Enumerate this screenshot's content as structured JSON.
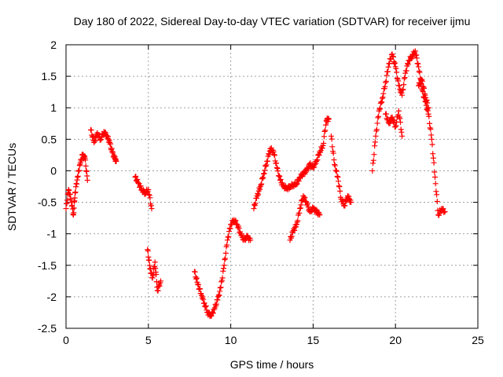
{
  "chart_data": {
    "type": "scatter",
    "title": "Day 180 of 2022, Sidereal Day-to-day VTEC variation (SDTVAR) for receiver ijmu",
    "xlabel": "GPS time / hours",
    "ylabel": "SDTVAR / TECUs",
    "xlim": [
      0,
      25
    ],
    "ylim": [
      -2.5,
      2
    ],
    "xticks": [
      0,
      5,
      10,
      15,
      20,
      25
    ],
    "yticks": [
      -2.5,
      -2,
      -1.5,
      -1,
      -0.5,
      0,
      0.5,
      1,
      1.5,
      2
    ],
    "xtick_labels": [
      "0",
      "5",
      "10",
      "15",
      "20",
      "25"
    ],
    "ytick_labels": [
      "-2.5",
      "-2",
      "-1.5",
      "-1",
      "-0.5",
      "0",
      "0.5",
      "1",
      "1.5",
      "2"
    ],
    "grid": true,
    "marker": "+",
    "color": "#ff0000",
    "series": [
      {
        "name": "SDTVAR",
        "segments": [
          {
            "x": [
              0.0,
              0.15,
              0.3,
              0.45,
              0.55,
              0.7,
              0.85,
              1.0,
              1.15,
              1.3
            ],
            "y": [
              -0.6,
              -0.3,
              -0.45,
              -0.7,
              -0.35,
              -0.1,
              0.1,
              0.25,
              0.2,
              -0.15
            ]
          },
          {
            "x": [
              1.5,
              1.7,
              1.9,
              2.1,
              2.3,
              2.5,
              2.65,
              2.8,
              2.95,
              3.05
            ],
            "y": [
              0.65,
              0.45,
              0.6,
              0.5,
              0.62,
              0.55,
              0.45,
              0.3,
              0.2,
              0.15
            ]
          },
          {
            "x": [
              4.2,
              4.4,
              4.6,
              4.8,
              5.0,
              5.2
            ],
            "y": [
              -0.1,
              -0.2,
              -0.3,
              -0.35,
              -0.3,
              -0.6
            ]
          },
          {
            "x": [
              4.95,
              5.1,
              5.25,
              5.4,
              5.55,
              5.75
            ],
            "y": [
              -1.25,
              -1.55,
              -1.7,
              -1.45,
              -1.9,
              -1.75
            ]
          },
          {
            "x": [
              7.8,
              8.0,
              8.2,
              8.4,
              8.6,
              8.8,
              9.0,
              9.2,
              9.4,
              9.6,
              9.8,
              10.0,
              10.2,
              10.4,
              10.6,
              10.8,
              11.0,
              11.2
            ],
            "y": [
              -1.6,
              -1.8,
              -1.95,
              -2.1,
              -2.25,
              -2.3,
              -2.2,
              -2.05,
              -1.85,
              -1.5,
              -1.1,
              -0.85,
              -0.78,
              -0.85,
              -1.0,
              -1.1,
              -1.05,
              -1.1
            ]
          },
          {
            "x": [
              11.4,
              11.6,
              11.8,
              12.0,
              12.2,
              12.4,
              12.6,
              12.8,
              13.0,
              13.2,
              13.4,
              13.6,
              13.8,
              14.0,
              14.2,
              14.4,
              14.6,
              14.8,
              15.0,
              15.2,
              15.4,
              15.6,
              15.8,
              15.95
            ],
            "y": [
              -0.6,
              -0.4,
              -0.25,
              -0.05,
              0.15,
              0.35,
              0.3,
              0.05,
              -0.15,
              -0.25,
              -0.28,
              -0.25,
              -0.22,
              -0.2,
              -0.1,
              -0.05,
              0.0,
              0.1,
              0.05,
              0.15,
              0.3,
              0.4,
              0.8,
              0.82
            ]
          },
          {
            "x": [
              13.6,
              13.8,
              14.0,
              14.2,
              14.4,
              14.6,
              14.8,
              15.0,
              15.2,
              15.4
            ],
            "y": [
              -1.1,
              -0.95,
              -0.85,
              -0.6,
              -0.4,
              -0.5,
              -0.65,
              -0.6,
              -0.65,
              -0.7
            ]
          },
          {
            "x": [
              16.1,
              16.3,
              16.5,
              16.7,
              16.9,
              17.1,
              17.3
            ],
            "y": [
              0.55,
              0.1,
              -0.1,
              -0.45,
              -0.55,
              -0.4,
              -0.5
            ]
          },
          {
            "x": [
              18.6,
              18.8,
              19.0,
              19.2,
              19.4,
              19.6,
              19.8,
              20.0,
              20.2,
              20.4,
              20.6,
              20.8,
              21.0,
              21.2,
              21.4,
              21.6,
              21.8,
              22.0,
              22.2,
              22.4,
              22.6,
              22.8,
              23.0
            ],
            "y": [
              0.0,
              0.55,
              0.95,
              1.15,
              1.4,
              1.7,
              1.85,
              1.65,
              1.35,
              1.2,
              1.55,
              1.75,
              1.82,
              1.9,
              1.65,
              1.3,
              1.1,
              0.9,
              0.5,
              -0.1,
              -0.7,
              -0.6,
              -0.65
            ]
          },
          {
            "x": [
              19.4,
              19.6,
              19.8,
              20.0,
              20.2,
              20.4
            ],
            "y": [
              0.9,
              0.75,
              0.85,
              0.7,
              0.95,
              0.55
            ]
          },
          {
            "x": [
              21.4,
              21.6,
              21.8,
              22.0
            ],
            "y": [
              1.35,
              1.45,
              1.2,
              1.0
            ]
          }
        ]
      }
    ]
  }
}
